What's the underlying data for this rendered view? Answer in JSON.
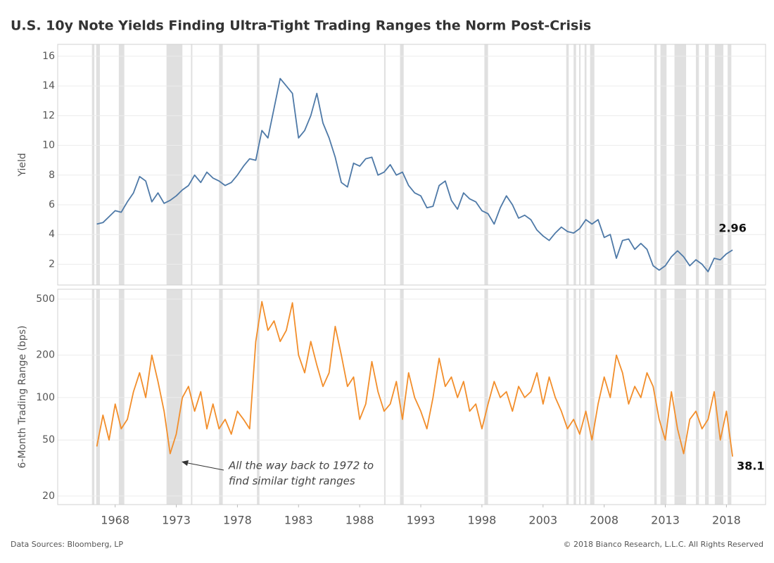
{
  "title": "U.S. 10y Note Yields Finding Ultra-Tight Trading Ranges the Norm Post-Crisis",
  "footer": {
    "source": "Data Sources: Bloomberg, LP",
    "copyright": "© 2018 Bianco Research, L.L.C. All Rights Reserved"
  },
  "shaded_periods": [
    [
      1966.1,
      1966.3
    ],
    [
      1966.45,
      1966.75
    ],
    [
      1968.3,
      1968.75
    ],
    [
      1972.2,
      1973.5
    ],
    [
      1974.2,
      1974.3
    ],
    [
      1976.5,
      1976.8
    ],
    [
      1979.6,
      1979.8
    ],
    [
      1990.0,
      1990.1
    ],
    [
      1991.3,
      1991.6
    ],
    [
      1998.2,
      1998.5
    ],
    [
      2004.9,
      2005.1
    ],
    [
      2005.5,
      2005.7
    ],
    [
      2005.95,
      2006.05
    ],
    [
      2006.4,
      2006.55
    ],
    [
      2006.85,
      2007.2
    ],
    [
      2012.1,
      2012.3
    ],
    [
      2012.6,
      2013.1
    ],
    [
      2013.75,
      2014.7
    ],
    [
      2015.5,
      2015.75
    ],
    [
      2016.25,
      2016.55
    ],
    [
      2017.05,
      2017.75
    ],
    [
      2018.1,
      2018.4
    ]
  ],
  "chart_data": [
    {
      "type": "line",
      "y_label": "Yield",
      "xlim": [
        1963.3,
        2021.2
      ],
      "ylim": [
        0.6,
        16.8
      ],
      "yticks": [
        2,
        4,
        6,
        8,
        10,
        12,
        14,
        16
      ],
      "grid": true,
      "x": [
        1966.5,
        1967,
        1967.5,
        1968,
        1968.5,
        1969,
        1969.5,
        1970,
        1970.5,
        1971,
        1971.5,
        1972,
        1972.5,
        1973,
        1973.5,
        1974,
        1974.5,
        1975,
        1975.5,
        1976,
        1976.5,
        1977,
        1977.5,
        1978,
        1978.5,
        1979,
        1979.5,
        1980,
        1980.5,
        1981,
        1981.5,
        1982,
        1982.5,
        1983,
        1983.5,
        1984,
        1984.5,
        1985,
        1985.5,
        1986,
        1986.5,
        1987,
        1987.5,
        1988,
        1988.5,
        1989,
        1989.5,
        1990,
        1990.5,
        1991,
        1991.5,
        1992,
        1992.5,
        1993,
        1993.5,
        1994,
        1994.5,
        1995,
        1995.5,
        1996,
        1996.5,
        1997,
        1997.5,
        1998,
        1998.5,
        1999,
        1999.5,
        2000,
        2000.5,
        2001,
        2001.5,
        2002,
        2002.5,
        2003,
        2003.5,
        2004,
        2004.5,
        2005,
        2005.5,
        2006,
        2006.5,
        2007,
        2007.5,
        2008,
        2008.5,
        2009,
        2009.5,
        2010,
        2010.5,
        2011,
        2011.5,
        2012,
        2012.5,
        2013,
        2013.5,
        2014,
        2014.5,
        2015,
        2015.5,
        2016,
        2016.5,
        2017,
        2017.5,
        2018,
        2018.5
      ],
      "series": [
        {
          "name": "10y Yield",
          "color": "#4e79a7",
          "values": [
            4.7,
            4.8,
            5.2,
            5.6,
            5.5,
            6.2,
            6.8,
            7.9,
            7.6,
            6.2,
            6.8,
            6.1,
            6.3,
            6.6,
            7.0,
            7.3,
            8.0,
            7.5,
            8.2,
            7.8,
            7.6,
            7.3,
            7.5,
            8.0,
            8.6,
            9.1,
            9.0,
            11.0,
            10.5,
            12.5,
            14.5,
            14.0,
            13.5,
            10.5,
            11.0,
            12.0,
            13.5,
            11.5,
            10.5,
            9.2,
            7.5,
            7.2,
            8.8,
            8.6,
            9.1,
            9.2,
            8.0,
            8.2,
            8.7,
            8.0,
            8.2,
            7.3,
            6.8,
            6.6,
            5.8,
            5.9,
            7.3,
            7.6,
            6.3,
            5.7,
            6.8,
            6.4,
            6.2,
            5.6,
            5.4,
            4.7,
            5.8,
            6.6,
            6.0,
            5.1,
            5.3,
            5.0,
            4.3,
            3.9,
            3.6,
            4.1,
            4.5,
            4.2,
            4.1,
            4.4,
            5.0,
            4.7,
            5.0,
            3.8,
            4.0,
            2.4,
            3.6,
            3.7,
            3.0,
            3.4,
            3.0,
            1.9,
            1.6,
            1.9,
            2.5,
            2.9,
            2.5,
            1.9,
            2.3,
            2.0,
            1.5,
            2.4,
            2.3,
            2.7,
            2.96
          ]
        }
      ]
    },
    {
      "type": "line",
      "y_label": "6-Month Trading Range (bps)",
      "yscale": "log",
      "xlim": [
        1963.3,
        2021.2
      ],
      "ylim": [
        17.4,
        587
      ],
      "yticks": [
        20,
        50,
        100,
        200,
        500
      ],
      "grid": true,
      "xticks": [
        1968,
        1973,
        1978,
        1983,
        1988,
        1993,
        1998,
        2003,
        2008,
        2013,
        2018
      ],
      "annotation": [
        "All the way back to 1972 to",
        "find similar tight ranges"
      ],
      "x": [
        1966.5,
        1967,
        1967.5,
        1968,
        1968.5,
        1969,
        1969.5,
        1970,
        1970.5,
        1971,
        1971.5,
        1972,
        1972.5,
        1973,
        1973.5,
        1974,
        1974.5,
        1975,
        1975.5,
        1976,
        1976.5,
        1977,
        1977.5,
        1978,
        1978.5,
        1979,
        1979.5,
        1980,
        1980.5,
        1981,
        1981.5,
        1982,
        1982.5,
        1983,
        1983.5,
        1984,
        1984.5,
        1985,
        1985.5,
        1986,
        1986.5,
        1987,
        1987.5,
        1988,
        1988.5,
        1989,
        1989.5,
        1990,
        1990.5,
        1991,
        1991.5,
        1992,
        1992.5,
        1993,
        1993.5,
        1994,
        1994.5,
        1995,
        1995.5,
        1996,
        1996.5,
        1997,
        1997.5,
        1998,
        1998.5,
        1999,
        1999.5,
        2000,
        2000.5,
        2001,
        2001.5,
        2002,
        2002.5,
        2003,
        2003.5,
        2004,
        2004.5,
        2005,
        2005.5,
        2006,
        2006.5,
        2007,
        2007.5,
        2008,
        2008.5,
        2009,
        2009.5,
        2010,
        2010.5,
        2011,
        2011.5,
        2012,
        2012.5,
        2013,
        2013.5,
        2014,
        2014.5,
        2015,
        2015.5,
        2016,
        2016.5,
        2017,
        2017.5,
        2018,
        2018.5
      ],
      "series": [
        {
          "name": "6-Month Trading Range",
          "color": "#f28e2b",
          "values": [
            45,
            75,
            50,
            90,
            60,
            70,
            110,
            150,
            100,
            200,
            130,
            80,
            40,
            55,
            100,
            120,
            80,
            110,
            60,
            90,
            60,
            70,
            55,
            80,
            70,
            60,
            250,
            480,
            300,
            350,
            250,
            300,
            470,
            200,
            150,
            250,
            170,
            120,
            150,
            320,
            200,
            120,
            140,
            70,
            90,
            180,
            110,
            80,
            90,
            130,
            70,
            150,
            100,
            80,
            60,
            100,
            190,
            120,
            140,
            100,
            130,
            80,
            90,
            60,
            90,
            130,
            100,
            110,
            80,
            120,
            100,
            110,
            150,
            90,
            140,
            100,
            80,
            60,
            70,
            55,
            80,
            50,
            90,
            140,
            100,
            200,
            150,
            90,
            120,
            100,
            150,
            120,
            70,
            50,
            110,
            60,
            40,
            70,
            80,
            60,
            70,
            110,
            50,
            80,
            38.1
          ]
        }
      ]
    }
  ]
}
